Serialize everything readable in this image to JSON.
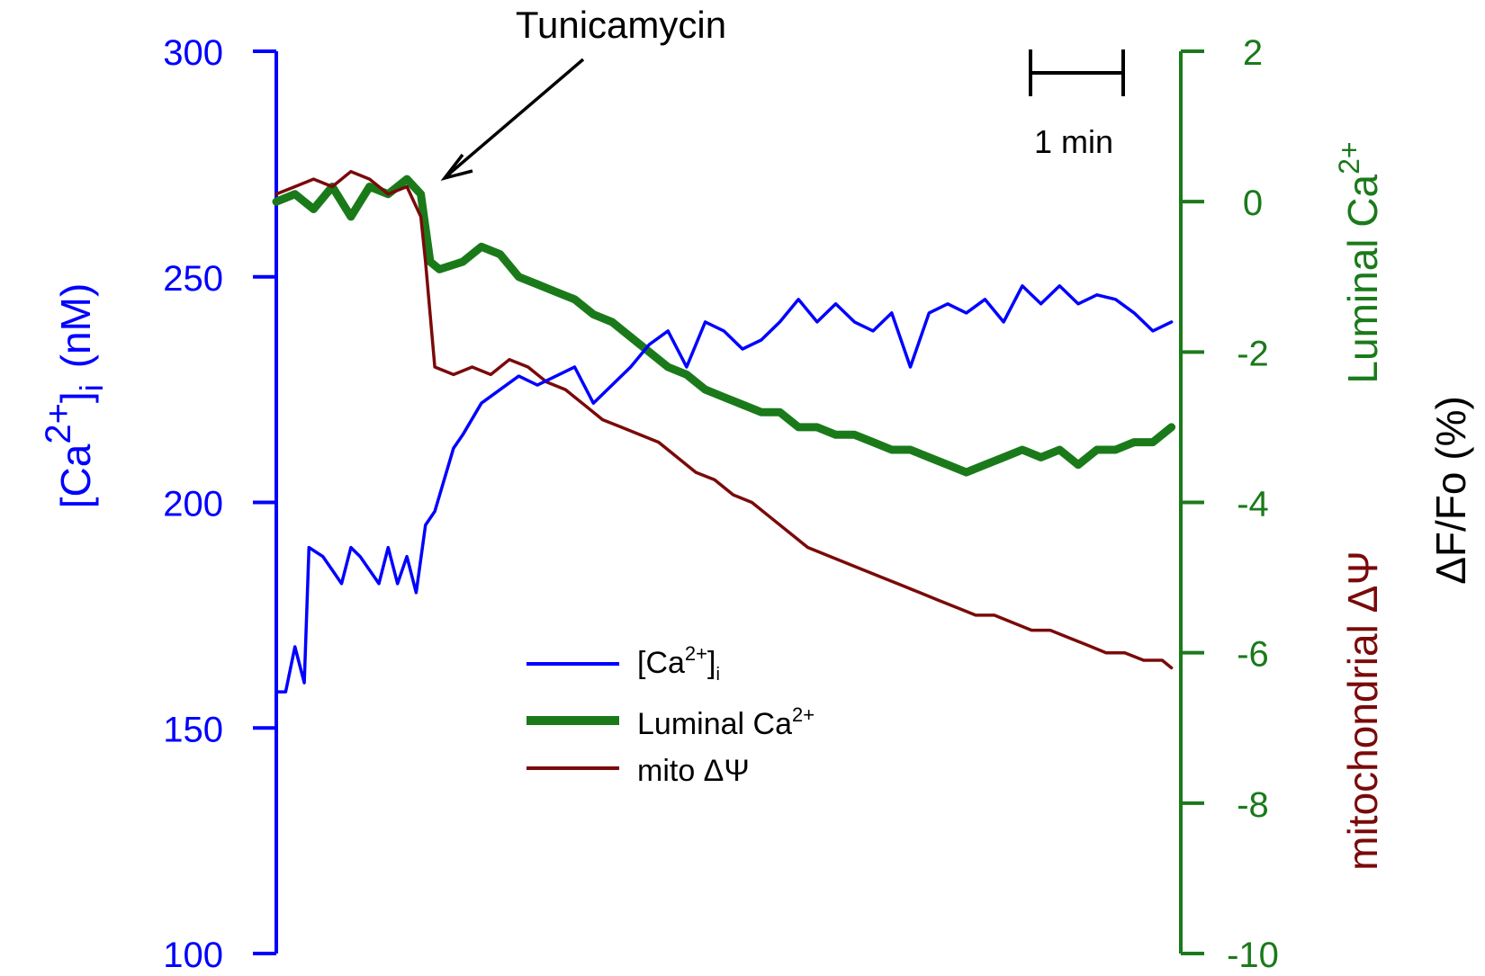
{
  "colors": {
    "ca_axis": "#0000ff",
    "luminal_axis": "#1a7a1a",
    "mito": "#7a0a0a",
    "black": "#000000"
  },
  "annotation": {
    "drug_label": "Tunicamycin",
    "drug_time_min": 1.62
  },
  "scale_bar": {
    "label": "1 min",
    "length_min": 1
  },
  "left_axis": {
    "label_prefix": "[Ca",
    "label_sup": "2+",
    "label_bracket": "]",
    "label_sub": "i",
    "label_unit": "(nM)",
    "ticks": [
      "100",
      "150",
      "200",
      "250",
      "300"
    ]
  },
  "right_axis": {
    "label_luminal": "Luminal Ca",
    "label_luminal_sup": "2+",
    "label_mito": "mitochondrial ΔΨ",
    "label_dff": "ΔF/Fo (%)",
    "ticks": [
      "-10",
      "-8",
      "-6",
      "-4",
      "-2",
      "0",
      "2"
    ]
  },
  "legend": {
    "ca_prefix": "[Ca",
    "ca_sup": "2+",
    "ca_bracket": "]",
    "ca_sub": "i",
    "luminal_prefix": "Luminal Ca",
    "luminal_sup": "2+",
    "mito": "mito ΔΨ"
  },
  "chart_data": {
    "type": "line",
    "x_unit": "min",
    "xlim": [
      0,
      9.7
    ],
    "y_left": {
      "unit": "nM",
      "ylim": [
        100,
        300
      ],
      "ticks": [
        100,
        150,
        200,
        250,
        300
      ]
    },
    "y_right": {
      "unit": "%",
      "ylim": [
        -10,
        2
      ],
      "ticks": [
        -10,
        -8,
        -6,
        -4,
        -2,
        0,
        2
      ]
    },
    "grid": false,
    "legend_position": "bottom-center",
    "series": [
      {
        "name": "[Ca2+]i",
        "axis": "left",
        "color": "#0000ff",
        "x": [
          0,
          0.1,
          0.2,
          0.3,
          0.35,
          0.5,
          0.6,
          0.7,
          0.8,
          0.9,
          1.0,
          1.1,
          1.2,
          1.3,
          1.4,
          1.5,
          1.6,
          1.7,
          1.8,
          1.9,
          2.0,
          2.2,
          2.4,
          2.6,
          2.8,
          3.0,
          3.2,
          3.4,
          3.6,
          3.8,
          4.0,
          4.2,
          4.4,
          4.6,
          4.8,
          5.0,
          5.2,
          5.4,
          5.6,
          5.8,
          6.0,
          6.2,
          6.4,
          6.6,
          6.8,
          7.0,
          7.2,
          7.4,
          7.6,
          7.8,
          8.0,
          8.2,
          8.4,
          8.6,
          8.8,
          9.0,
          9.2,
          9.4,
          9.6
        ],
        "values": [
          158,
          158,
          168,
          160,
          190,
          188,
          185,
          182,
          190,
          188,
          185,
          182,
          190,
          182,
          188,
          180,
          195,
          198,
          205,
          212,
          215,
          222,
          225,
          228,
          226,
          228,
          230,
          222,
          226,
          230,
          235,
          238,
          230,
          240,
          238,
          234,
          236,
          240,
          245,
          240,
          244,
          240,
          238,
          242,
          230,
          242,
          244,
          242,
          245,
          240,
          248,
          244,
          248,
          244,
          246,
          245,
          242,
          238,
          240
        ]
      },
      {
        "name": "Luminal Ca2+",
        "axis": "right",
        "color": "#1a7a1a",
        "x": [
          0,
          0.2,
          0.4,
          0.6,
          0.8,
          1.0,
          1.2,
          1.4,
          1.55,
          1.65,
          1.75,
          2.0,
          2.2,
          2.4,
          2.6,
          2.8,
          3.0,
          3.2,
          3.4,
          3.6,
          3.8,
          4.0,
          4.2,
          4.4,
          4.6,
          4.8,
          5.0,
          5.2,
          5.4,
          5.6,
          5.8,
          6.0,
          6.2,
          6.4,
          6.6,
          6.8,
          7.0,
          7.2,
          7.4,
          7.6,
          7.8,
          8.0,
          8.2,
          8.4,
          8.6,
          8.8,
          9.0,
          9.2,
          9.4,
          9.6
        ],
        "values": [
          0,
          0.1,
          -0.1,
          0.2,
          -0.2,
          0.2,
          0.1,
          0.3,
          0.1,
          -0.8,
          -0.9,
          -0.8,
          -0.6,
          -0.7,
          -1.0,
          -1.1,
          -1.2,
          -1.3,
          -1.5,
          -1.6,
          -1.8,
          -2.0,
          -2.2,
          -2.3,
          -2.5,
          -2.6,
          -2.7,
          -2.8,
          -2.8,
          -3.0,
          -3.0,
          -3.1,
          -3.1,
          -3.2,
          -3.3,
          -3.3,
          -3.4,
          -3.5,
          -3.6,
          -3.5,
          -3.4,
          -3.3,
          -3.4,
          -3.3,
          -3.5,
          -3.3,
          -3.3,
          -3.2,
          -3.2,
          -3.0
        ]
      },
      {
        "name": "mito ΔΨ",
        "axis": "right",
        "color": "#7a0a0a",
        "x": [
          0,
          0.2,
          0.4,
          0.6,
          0.8,
          1.0,
          1.2,
          1.4,
          1.55,
          1.6,
          1.7,
          1.9,
          2.1,
          2.3,
          2.5,
          2.7,
          2.9,
          3.1,
          3.3,
          3.5,
          3.7,
          3.9,
          4.1,
          4.3,
          4.5,
          4.7,
          4.9,
          5.1,
          5.3,
          5.5,
          5.7,
          5.9,
          6.1,
          6.3,
          6.5,
          6.7,
          6.9,
          7.1,
          7.3,
          7.5,
          7.7,
          7.9,
          8.1,
          8.3,
          8.5,
          8.7,
          8.9,
          9.1,
          9.3,
          9.5,
          9.6
        ],
        "values": [
          0.1,
          0.2,
          0.3,
          0.2,
          0.4,
          0.3,
          0.1,
          0.2,
          -0.2,
          -0.8,
          -2.2,
          -2.3,
          -2.2,
          -2.3,
          -2.1,
          -2.2,
          -2.4,
          -2.5,
          -2.7,
          -2.9,
          -3.0,
          -3.1,
          -3.2,
          -3.4,
          -3.6,
          -3.7,
          -3.9,
          -4.0,
          -4.2,
          -4.4,
          -4.6,
          -4.7,
          -4.8,
          -4.9,
          -5.0,
          -5.1,
          -5.2,
          -5.3,
          -5.4,
          -5.5,
          -5.5,
          -5.6,
          -5.7,
          -5.7,
          -5.8,
          -5.9,
          -6.0,
          -6.0,
          -6.1,
          -6.1,
          -6.2
        ]
      }
    ]
  }
}
